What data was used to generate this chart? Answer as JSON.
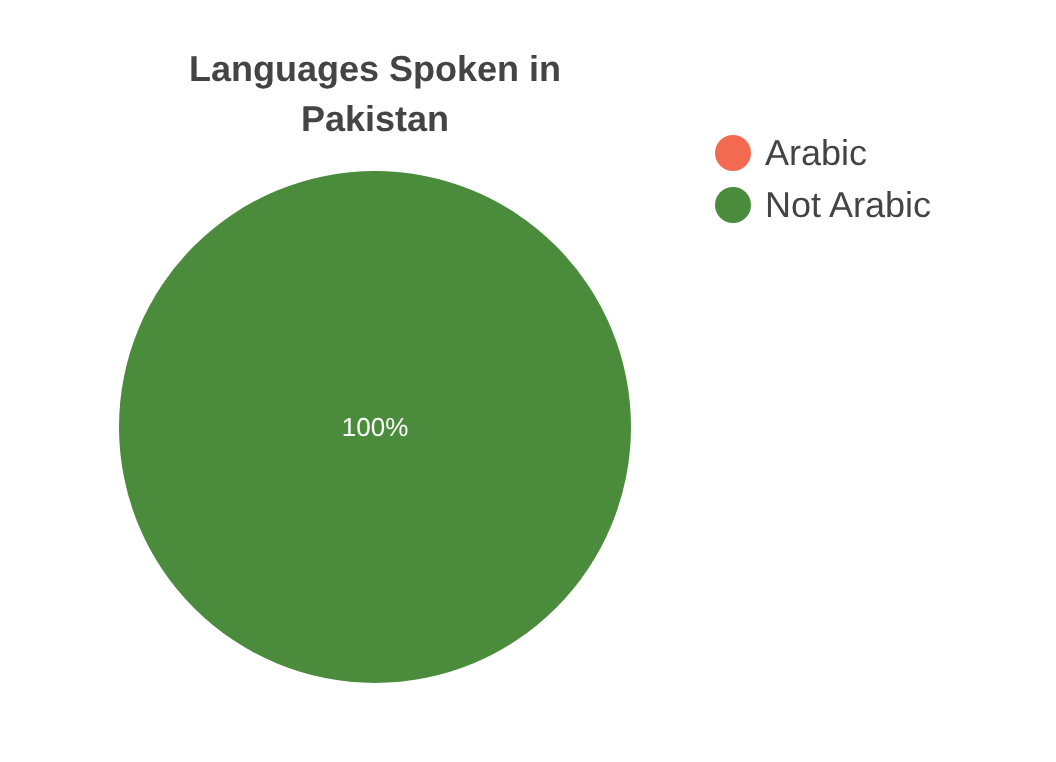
{
  "chart_data": {
    "type": "pie",
    "title": "Languages Spoken in Pakistan",
    "categories": [
      "Arabic",
      "Not Arabic"
    ],
    "values": [
      0,
      100
    ],
    "colors": [
      "#f26b50",
      "#4a8c3c"
    ],
    "value_labels": [
      null,
      "100%"
    ],
    "legend": "top right"
  }
}
